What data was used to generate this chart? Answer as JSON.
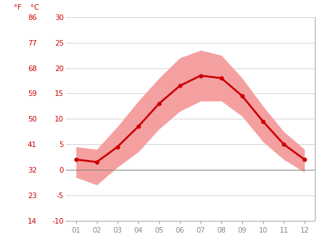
{
  "months": [
    1,
    2,
    3,
    4,
    5,
    6,
    7,
    8,
    9,
    10,
    11,
    12
  ],
  "month_labels": [
    "01",
    "02",
    "03",
    "04",
    "05",
    "06",
    "07",
    "08",
    "09",
    "10",
    "11",
    "12"
  ],
  "mean_temp_c": [
    2.0,
    1.5,
    4.5,
    8.5,
    13.0,
    16.5,
    18.5,
    18.0,
    14.5,
    9.5,
    5.0,
    2.0
  ],
  "max_temp_c": [
    4.5,
    4.0,
    8.5,
    13.5,
    18.0,
    22.0,
    23.5,
    22.5,
    18.0,
    12.5,
    7.5,
    4.0
  ],
  "min_temp_c": [
    -1.5,
    -3.0,
    0.5,
    3.5,
    8.0,
    11.5,
    13.5,
    13.5,
    10.5,
    5.5,
    2.0,
    -0.5
  ],
  "line_color": "#cc0000",
  "band_color": "#f4a0a0",
  "zero_line_color": "#888888",
  "background_color": "#ffffff",
  "grid_color": "#cccccc",
  "label_color": "#cc0000",
  "tick_color": "#888888",
  "ylim_c": [
    -10,
    30
  ],
  "yticks_c": [
    -10,
    -5,
    0,
    5,
    10,
    15,
    20,
    25,
    30
  ],
  "yticks_f": [
    14,
    23,
    32,
    41,
    50,
    59,
    68,
    77,
    86
  ],
  "xlim": [
    0.5,
    12.5
  ],
  "figsize": [
    4.74,
    3.55
  ],
  "dpi": 100
}
